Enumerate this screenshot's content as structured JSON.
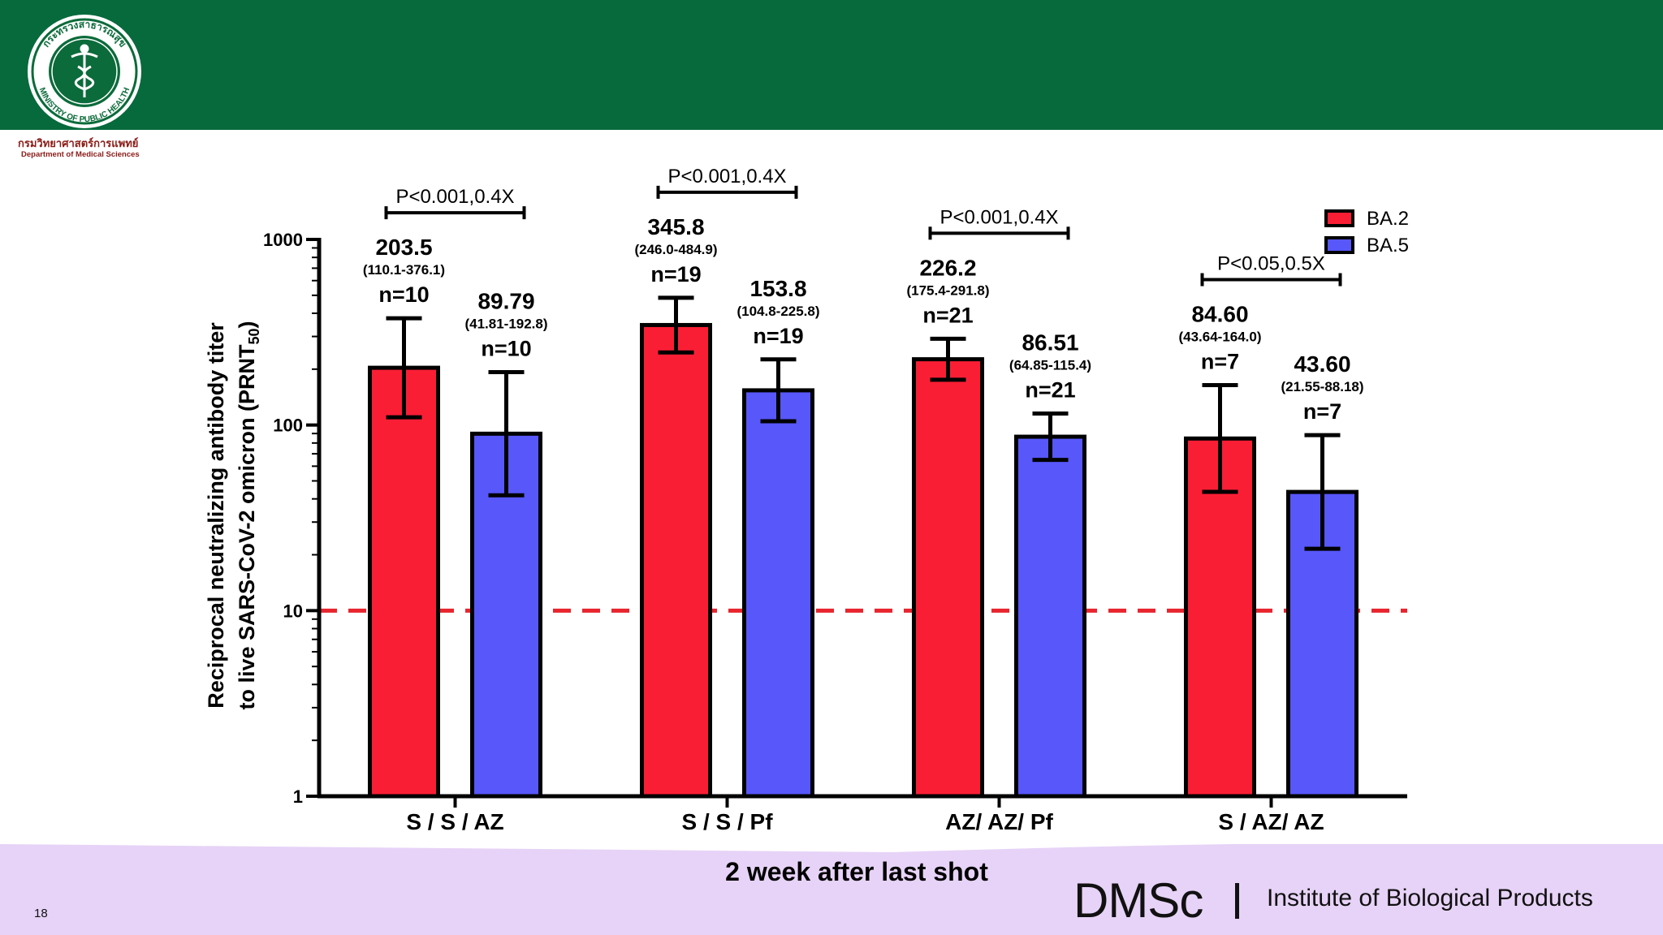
{
  "header": {
    "logo_ring_text_top": "กระทรวงสาธารณสุข",
    "logo_ring_text_bottom": "MINISTRY OF PUBLIC HEALTH",
    "org_thai": "กรมวิทยาศาสตร์การแพทย์",
    "org_english": "Department of Medical Sciences"
  },
  "footer": {
    "page_number": "18",
    "brand": "DMSc",
    "institute": "Institute of Biological Products"
  },
  "colors": {
    "header_green": "#076a3c",
    "footer_lavender": "#e7d3f7",
    "ba2_red": "#fa1e35",
    "ba5_blue": "#5757fa",
    "threshold_red": "#e8242e"
  },
  "chart_data": {
    "type": "bar",
    "scale": "log",
    "ylim": [
      1,
      1000
    ],
    "yticks": [
      1,
      10,
      100,
      1000
    ],
    "ytick_labels": [
      "1",
      "10",
      "100",
      "1000"
    ],
    "ylabel": "Reciprocal neutralizing antibody titer to live SARS-CoV-2 omicron (PRNT 50)",
    "ylabel_line1": "Reciprocal neutralizing antibody titer",
    "ylabel_line2": "to live SARS-CoV-2 omicron  (PRNT",
    "ylabel_sub": "50",
    "ylabel_close": ")",
    "xlabel": "2 week after last shot",
    "threshold": 10,
    "legend_position": "top-right",
    "categories": [
      "S / S / AZ",
      "S / S / Pf",
      "AZ/ AZ/ Pf",
      "S / AZ/ AZ"
    ],
    "series": [
      {
        "name": "BA.2",
        "color": "#fa1e35",
        "values": [
          203.5,
          345.8,
          226.2,
          84.6
        ],
        "labels": [
          "203.5",
          "345.8",
          "226.2",
          "84.60"
        ],
        "ci": [
          "(110.1-376.1)",
          "(246.0-484.9)",
          "(175.4-291.8)",
          "(43.64-164.0)"
        ],
        "ci_low": [
          110.1,
          246.0,
          175.4,
          43.64
        ],
        "ci_high": [
          376.1,
          484.9,
          291.8,
          164.0
        ],
        "n": [
          "n=10",
          "n=19",
          "n=21",
          "n=7"
        ]
      },
      {
        "name": "BA.5",
        "color": "#5757fa",
        "values": [
          89.79,
          153.8,
          86.51,
          43.6
        ],
        "labels": [
          "89.79",
          "153.8",
          "86.51",
          "43.60"
        ],
        "ci": [
          "(41.81-192.8)",
          "(104.8-225.8)",
          "(64.85-115.4)",
          "(21.55-88.18)"
        ],
        "ci_low": [
          41.81,
          104.8,
          64.85,
          21.55
        ],
        "ci_high": [
          192.8,
          225.8,
          115.4,
          88.18
        ],
        "n": [
          "n=10",
          "n=19",
          "n=21",
          "n=7"
        ]
      }
    ],
    "annotations": [
      {
        "group": 0,
        "text": "P<0.001,0.4X"
      },
      {
        "group": 1,
        "text": "P<0.001,0.4X"
      },
      {
        "group": 2,
        "text": "P<0.001,0.4X"
      },
      {
        "group": 3,
        "text": "P<0.05,0.5X"
      }
    ]
  }
}
